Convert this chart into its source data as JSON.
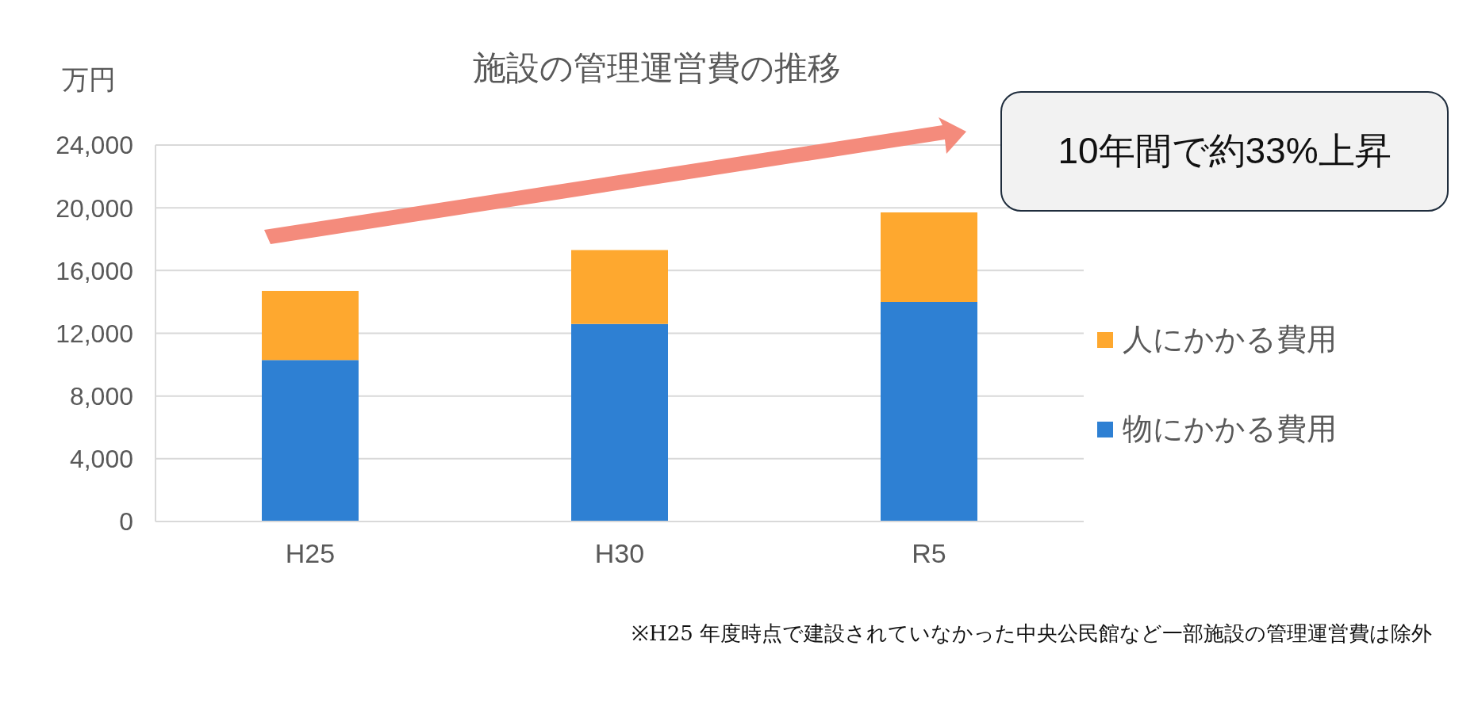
{
  "chart_data": {
    "type": "bar",
    "title": "施設の管理運営費の推移",
    "ylabel": "万円",
    "categories": [
      "H25",
      "H30",
      "R5"
    ],
    "stacked": true,
    "series": [
      {
        "name": "物にかかる費用",
        "color": "#2e80d3",
        "values": [
          10300,
          12600,
          14000
        ]
      },
      {
        "name": "人にかかる費用",
        "color": "#fea82f",
        "values": [
          4400,
          4700,
          5700
        ]
      }
    ],
    "ylim": [
      0,
      24000
    ],
    "yticks": [
      0,
      {
        "value": 4000,
        "label": "4,000"
      },
      {
        "value": 8000,
        "label": "8,000"
      },
      {
        "value": 12000,
        "label": "12,000"
      },
      {
        "value": 16000,
        "label": "16,000"
      },
      {
        "value": 20000,
        "label": "20,000"
      },
      {
        "value": 24000,
        "label": "24,000"
      }
    ],
    "grid": "y",
    "legend": "right",
    "annotations": [
      "10年間で約33%上昇",
      "※H25 年度時点で建設されていなかった中央公民館など一部施設の管理運営費は除外"
    ]
  }
}
